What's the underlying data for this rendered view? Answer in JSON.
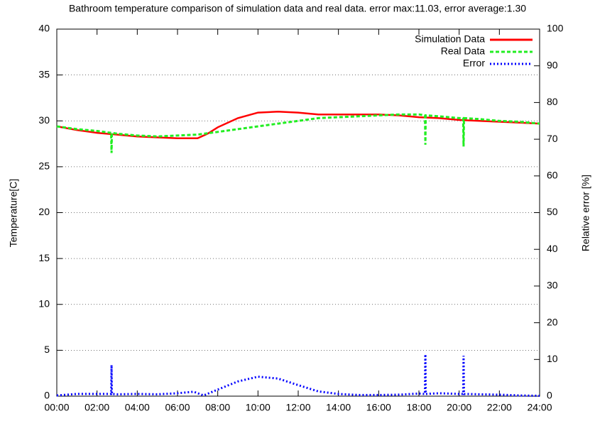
{
  "chart_data": {
    "type": "line",
    "title": "Bathroom temperature comparison of simulation data and real data. error max:11.03, error average:1.30",
    "y_label": "Temperature[C]",
    "y2_label": "Relative error [%]",
    "xlim": [
      0,
      24
    ],
    "xticks": [
      {
        "value": 0,
        "label": "00:00"
      },
      {
        "value": 2,
        "label": "02:00"
      },
      {
        "value": 4,
        "label": "04:00"
      },
      {
        "value": 6,
        "label": "06:00"
      },
      {
        "value": 8,
        "label": "08:00"
      },
      {
        "value": 10,
        "label": "10:00"
      },
      {
        "value": 12,
        "label": "12:00"
      },
      {
        "value": 14,
        "label": "14:00"
      },
      {
        "value": 16,
        "label": "16:00"
      },
      {
        "value": 18,
        "label": "18:00"
      },
      {
        "value": 20,
        "label": "20:00"
      },
      {
        "value": 22,
        "label": "22:00"
      },
      {
        "value": 24,
        "label": "24:00"
      }
    ],
    "ylim": [
      0,
      40
    ],
    "yticks": [
      0,
      5,
      10,
      15,
      20,
      25,
      30,
      35,
      40
    ],
    "y2lim": [
      0,
      100
    ],
    "y2ticks": [
      0,
      10,
      20,
      30,
      40,
      50,
      60,
      70,
      80,
      90,
      100
    ],
    "grid": true,
    "legend": "top-right",
    "series": [
      {
        "name": "Simulation Data",
        "color": "#ff0000",
        "x": [
          0,
          1,
          2,
          3,
          4,
          5,
          6,
          7,
          7.5,
          8,
          9,
          10,
          11,
          12,
          13,
          14,
          15,
          16,
          17,
          18,
          19,
          20,
          21,
          22,
          23,
          24
        ],
        "values": [
          29.4,
          29.0,
          28.7,
          28.5,
          28.3,
          28.2,
          28.1,
          28.1,
          28.6,
          29.3,
          30.3,
          30.9,
          31.0,
          30.9,
          30.7,
          30.7,
          30.7,
          30.7,
          30.6,
          30.4,
          30.3,
          30.1,
          30.0,
          29.9,
          29.8,
          29.7
        ]
      },
      {
        "name": "Real Data",
        "color": "#22ee22",
        "x": [
          0,
          1,
          2,
          2.7,
          2.72,
          2.74,
          3,
          4,
          5,
          6,
          7,
          8,
          9,
          10,
          11,
          12,
          13,
          14,
          15,
          16,
          17,
          18,
          18.3,
          18.32,
          18.34,
          19,
          20,
          20.2,
          20.22,
          20.24,
          21,
          22,
          23,
          24
        ],
        "values": [
          29.4,
          29.1,
          28.9,
          28.7,
          26.5,
          28.7,
          28.6,
          28.4,
          28.3,
          28.4,
          28.5,
          28.8,
          29.1,
          29.4,
          29.7,
          30.0,
          30.3,
          30.4,
          30.5,
          30.6,
          30.7,
          30.7,
          30.6,
          27.4,
          30.6,
          30.5,
          30.3,
          30.3,
          27.2,
          30.3,
          30.2,
          30.0,
          29.9,
          29.7
        ]
      },
      {
        "name": "Error",
        "color": "#0000ff",
        "axis": "y2",
        "x": [
          0,
          1,
          2,
          2.7,
          2.72,
          2.74,
          3,
          4,
          5,
          6,
          6.8,
          7.3,
          8,
          9,
          10,
          11,
          12,
          13,
          14,
          15,
          16,
          17,
          18,
          18.3,
          18.32,
          18.34,
          19,
          20,
          20.2,
          20.22,
          20.24,
          21,
          22,
          23,
          24
        ],
        "values": [
          0.2,
          0.6,
          0.6,
          0.6,
          8.5,
          0.6,
          0.5,
          0.6,
          0.5,
          0.8,
          1.2,
          0.2,
          1.8,
          4.0,
          5.3,
          4.8,
          3.0,
          1.3,
          0.6,
          0.3,
          0.3,
          0.4,
          0.7,
          0.6,
          11.4,
          0.6,
          0.8,
          0.6,
          0.6,
          11.0,
          0.6,
          0.5,
          0.4,
          0.2,
          0.1
        ]
      }
    ]
  }
}
